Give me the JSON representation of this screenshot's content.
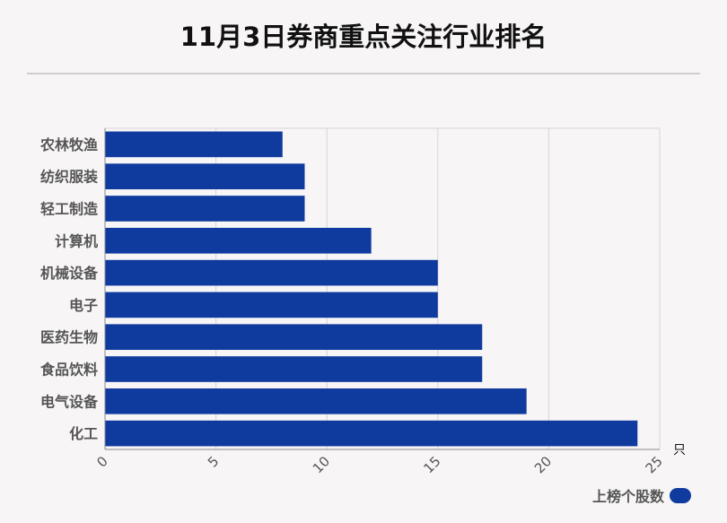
{
  "title": "11月3日券商重点关注行业排名",
  "chart_data": {
    "type": "bar",
    "orientation": "horizontal",
    "categories": [
      "农林牧渔",
      "纺织服装",
      "轻工制造",
      "计算机",
      "机械设备",
      "电子",
      "医药生物",
      "食品饮料",
      "电气设备",
      "化工"
    ],
    "values": [
      8,
      9,
      9,
      12,
      15,
      15,
      17,
      17,
      19,
      24
    ],
    "series": [
      {
        "name": "上榜个股数",
        "values": [
          8,
          9,
          9,
          12,
          15,
          15,
          17,
          17,
          19,
          24
        ]
      }
    ],
    "x_ticks": [
      "0",
      "5",
      "10",
      "15",
      "20",
      "25"
    ],
    "xlim": [
      0,
      25
    ],
    "unit": "只",
    "grid": true,
    "legend": "bottom-right",
    "bar_color": "#0f3a9e"
  }
}
